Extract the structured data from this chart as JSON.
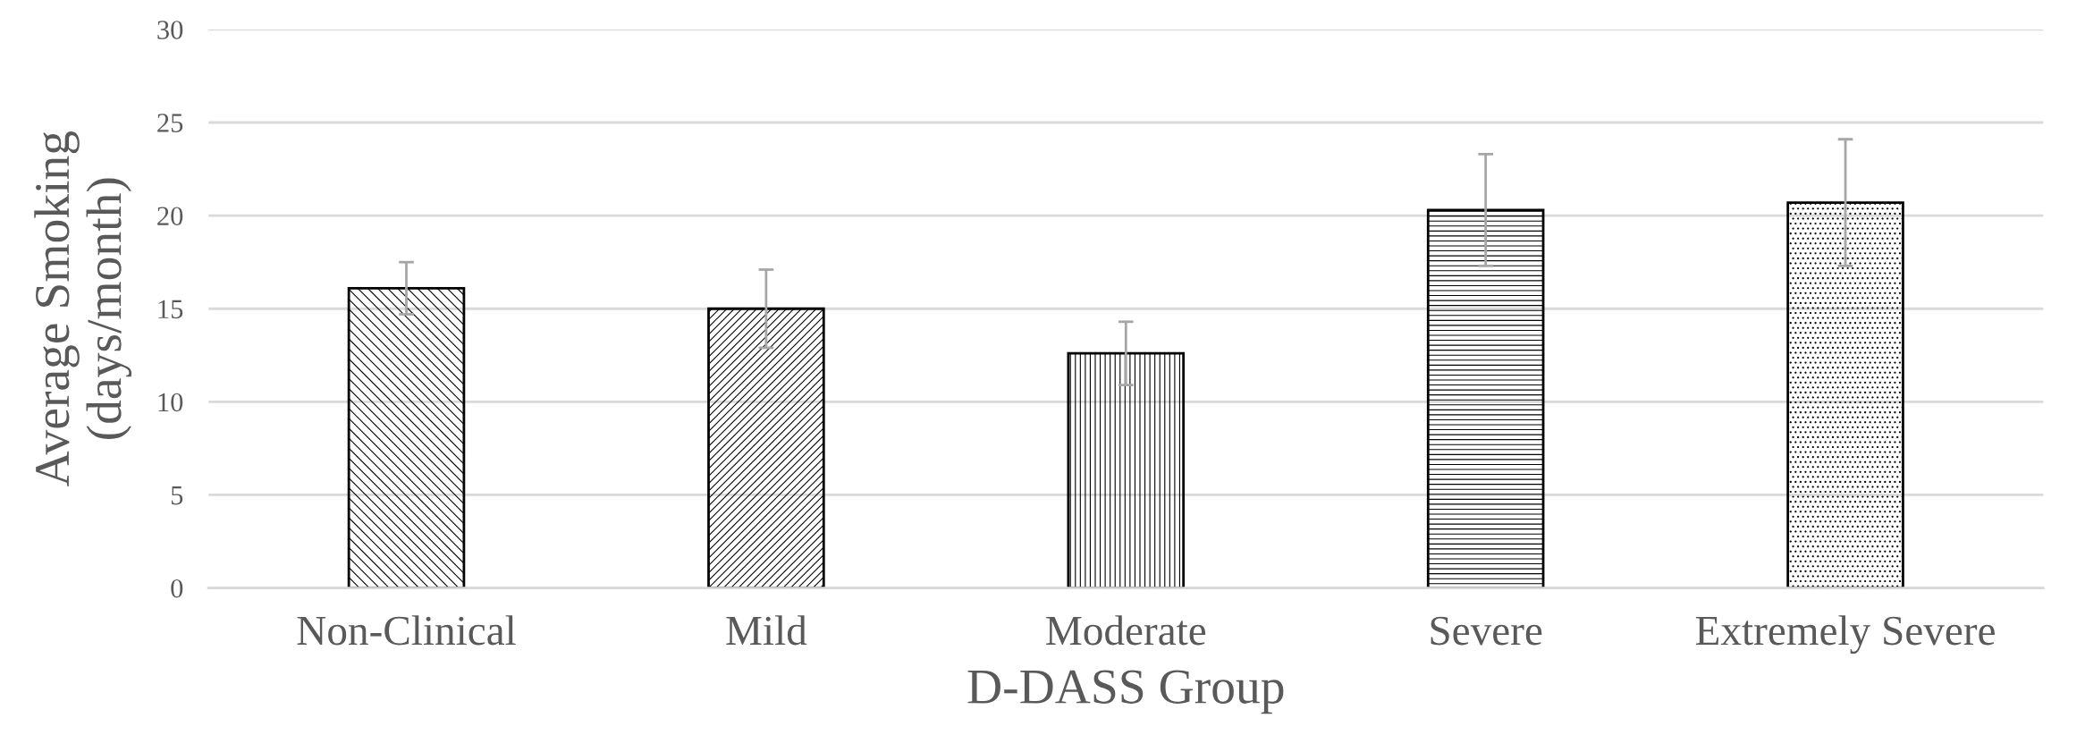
{
  "chart_data": {
    "type": "bar",
    "xlabel": "D-DASS Group",
    "ylabel": "Average Smoking\n(days/month)",
    "categories": [
      "Non-Clinical",
      "Mild",
      "Moderate",
      "Severe",
      "Extremely Severe"
    ],
    "values": [
      16.1,
      15.0,
      12.6,
      20.3,
      20.7
    ],
    "errors": [
      1.4,
      2.1,
      1.7,
      3.0,
      3.4
    ],
    "color": "#000000",
    "ylim": [
      0,
      30
    ],
    "yticks": [
      0,
      5,
      10,
      15,
      20,
      25,
      30
    ],
    "grid": "y"
  }
}
